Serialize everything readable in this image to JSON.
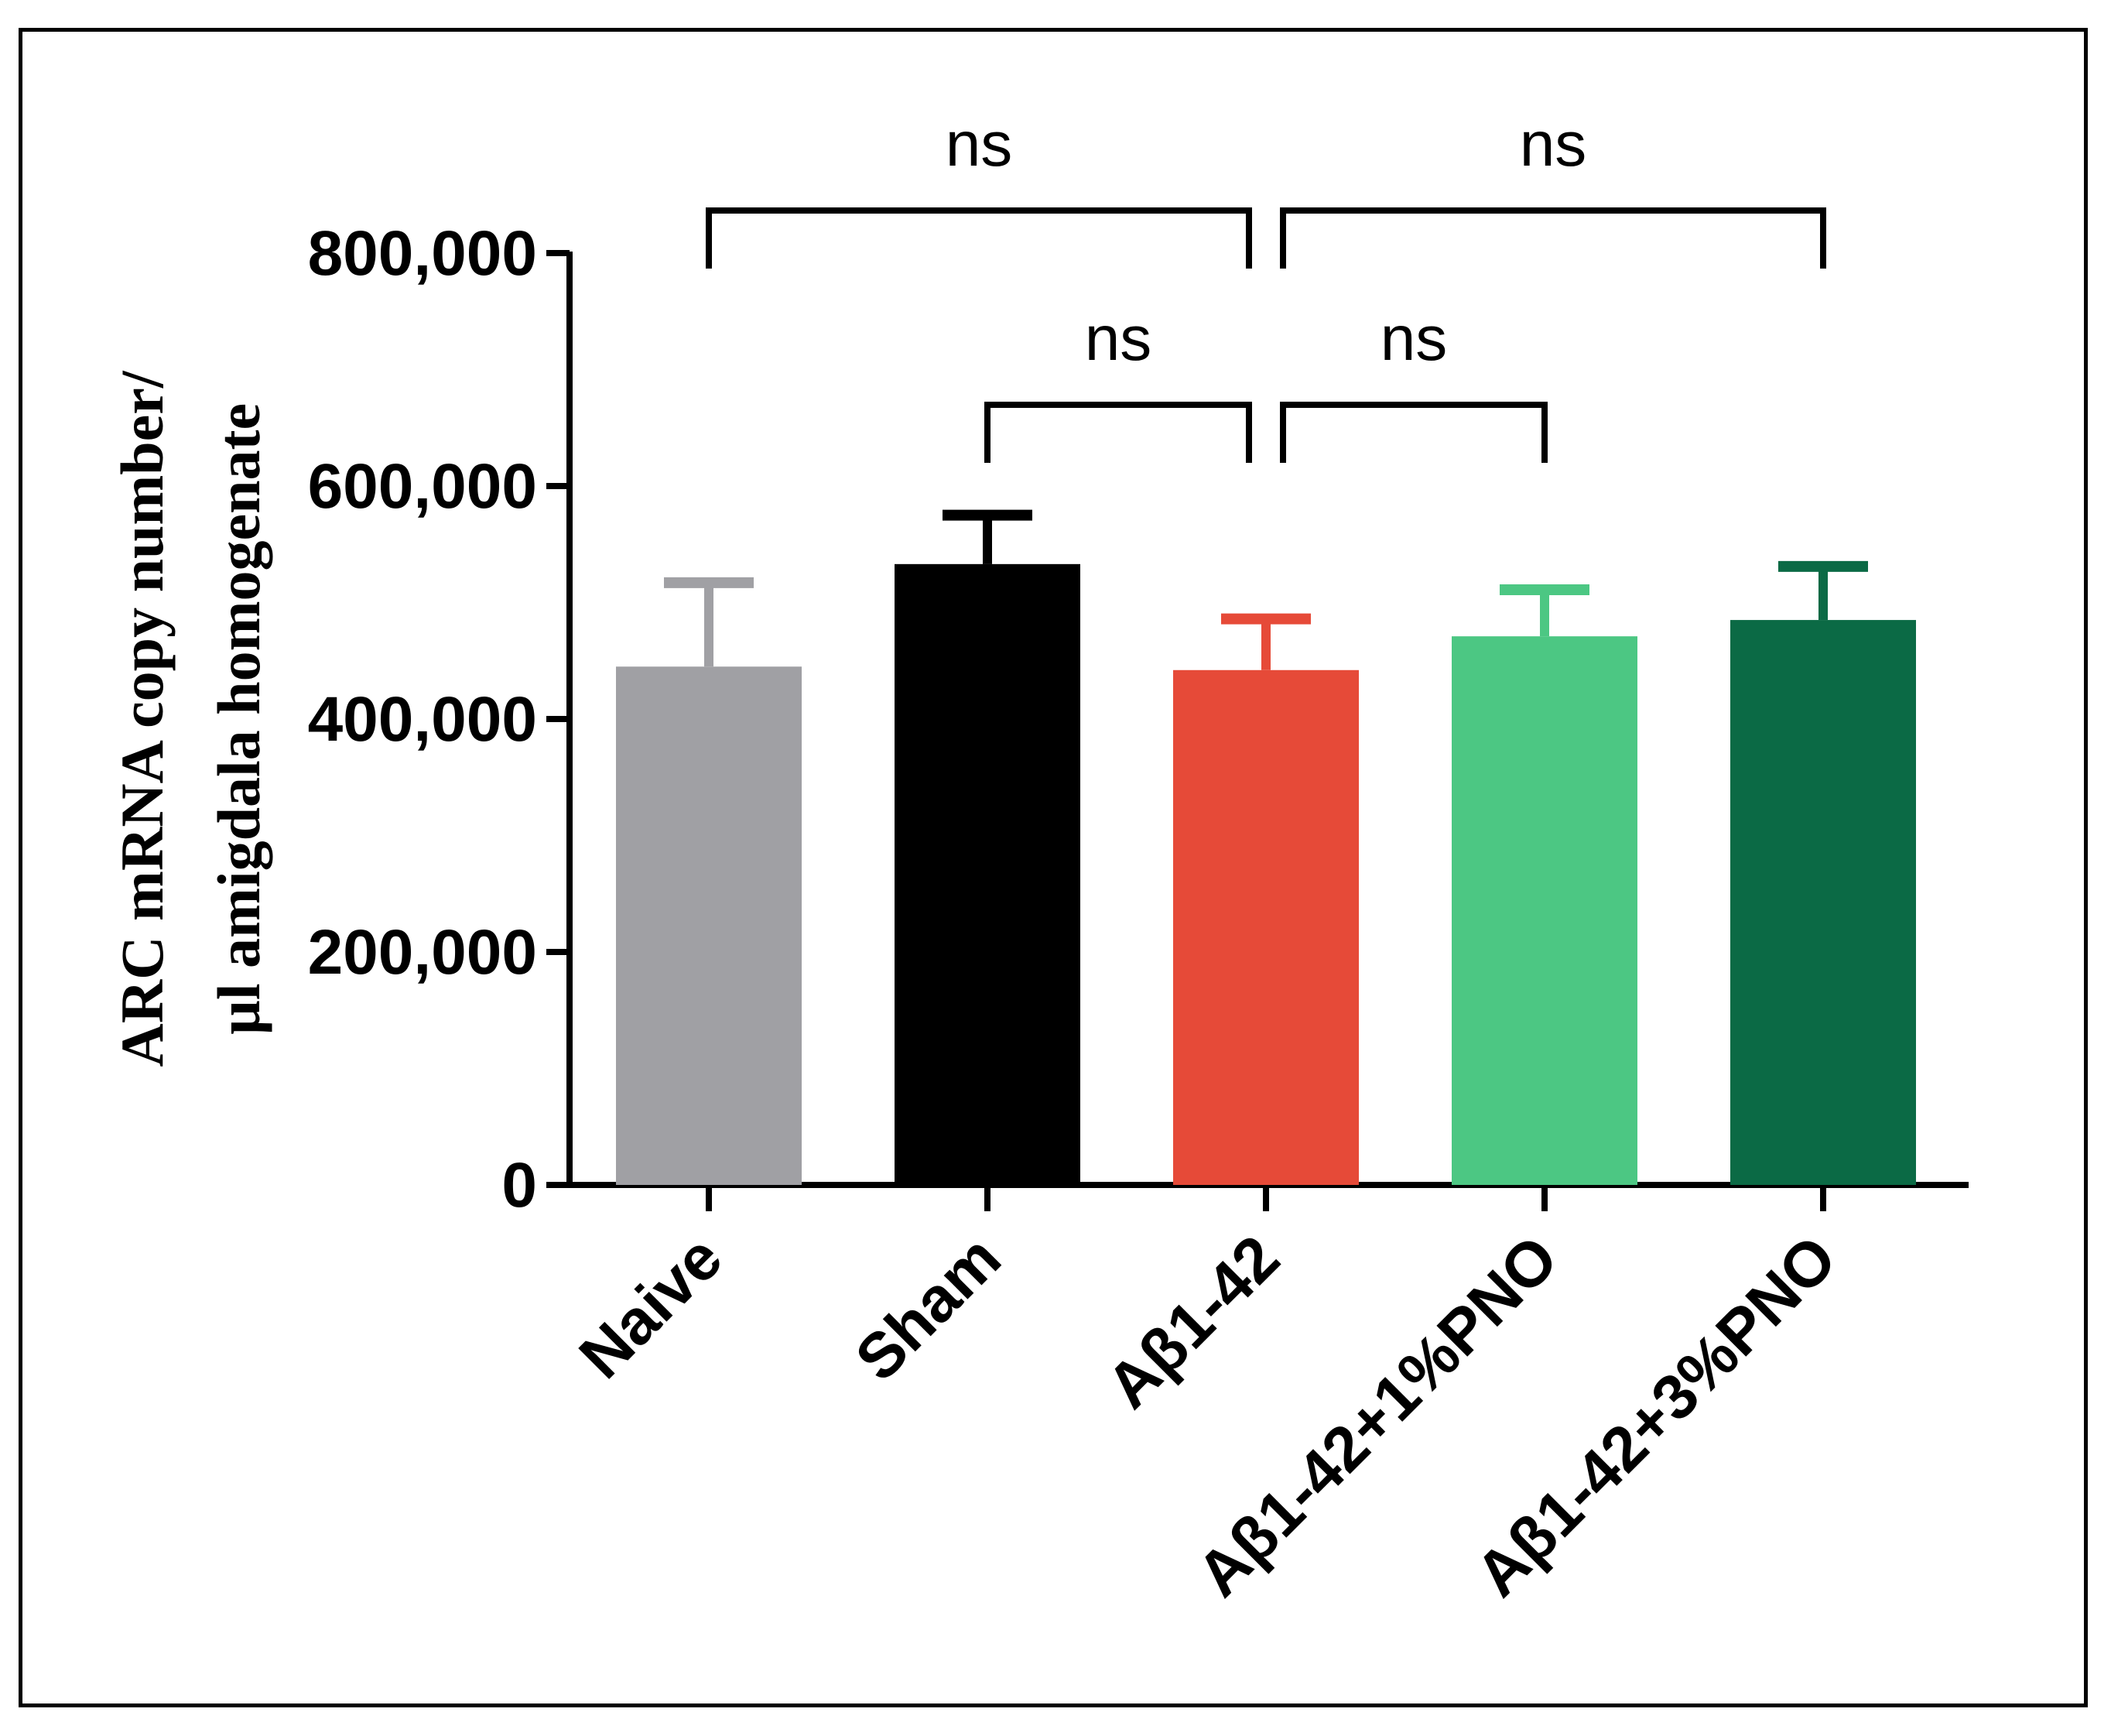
{
  "chart_data": {
    "type": "bar",
    "title": "",
    "xlabel": "",
    "ylabel_lines": [
      "ARC mRNA copy number/",
      "µl amigdala homogenate"
    ],
    "ylim": [
      0,
      800000
    ],
    "yticks": [
      0,
      200000,
      400000,
      600000,
      800000
    ],
    "ytick_labels": [
      "0",
      "200,000",
      "400,000",
      "600,000",
      "800,000"
    ],
    "grid": false,
    "categories": [
      "Naive",
      "Sham",
      "Aβ1-42",
      "Aβ1-42+1%PNO",
      "Aβ1-42+3%PNO"
    ],
    "values": [
      445000,
      533000,
      442000,
      471000,
      485000
    ],
    "errors": [
      72000,
      42000,
      44000,
      40000,
      46000
    ],
    "colors": [
      "#a0a0a4",
      "#000000",
      "#e64a38",
      "#4cc783",
      "#0b6a45"
    ],
    "significance": [
      {
        "from": 0,
        "to": 2,
        "level": 1,
        "label": "ns"
      },
      {
        "from": 2,
        "to": 4,
        "level": 1,
        "label": "ns"
      },
      {
        "from": 1,
        "to": 2,
        "level": 0,
        "label": "ns"
      },
      {
        "from": 2,
        "to": 3,
        "level": 0,
        "label": "ns"
      }
    ]
  }
}
